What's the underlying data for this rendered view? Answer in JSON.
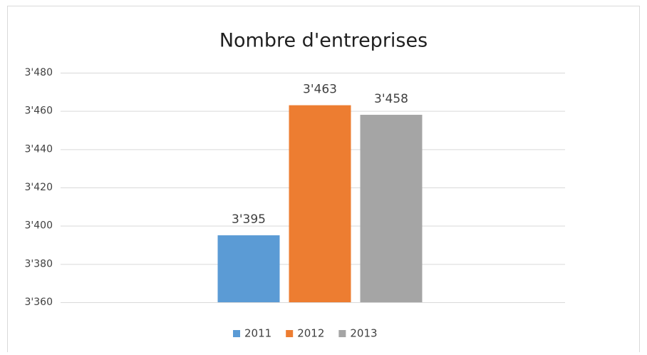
{
  "chart_data": {
    "type": "bar",
    "title": "Nombre d'entreprises",
    "categories": [
      null
    ],
    "series": [
      {
        "name": "2011",
        "color": "#5b9bd5",
        "values": [
          3395
        ],
        "value_labels": [
          "3'395"
        ]
      },
      {
        "name": "2012",
        "color": "#ed7d31",
        "values": [
          3463
        ],
        "value_labels": [
          "3'463"
        ]
      },
      {
        "name": "2013",
        "color": "#a5a5a5",
        "values": [
          3458
        ],
        "value_labels": [
          "3'458"
        ]
      }
    ],
    "ylim": [
      3360,
      3480
    ],
    "yticks": [
      {
        "value": 3360,
        "label": "3'360"
      },
      {
        "value": 3380,
        "label": "3'380"
      },
      {
        "value": 3400,
        "label": "3'400"
      },
      {
        "value": 3420,
        "label": "3'420"
      },
      {
        "value": 3440,
        "label": "3'440"
      },
      {
        "value": 3460,
        "label": "3'460"
      },
      {
        "value": 3480,
        "label": "3'480"
      }
    ],
    "grid": true,
    "legend": "bottom"
  }
}
